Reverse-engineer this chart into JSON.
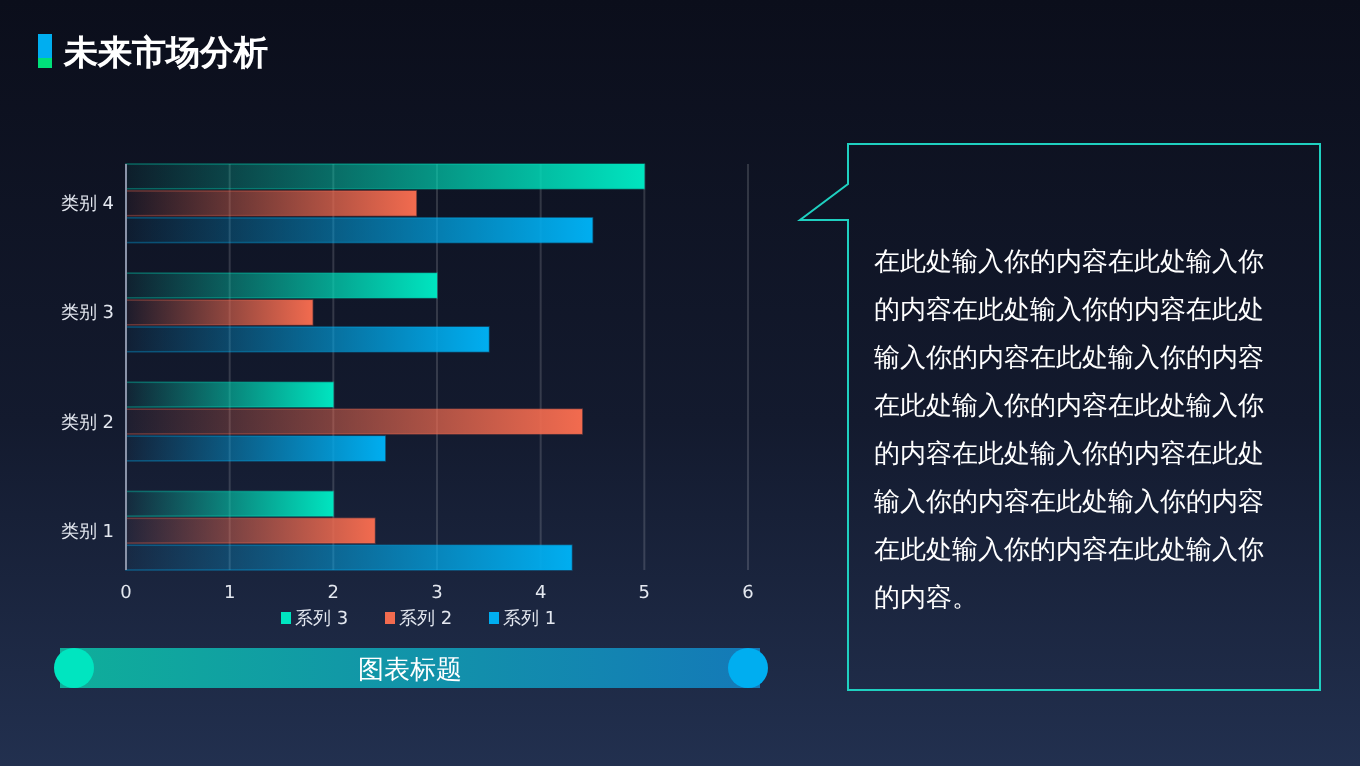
{
  "chart_data": {
    "type": "bar",
    "orientation": "horizontal",
    "title": "未来市场分析",
    "subtitle": "图表标题",
    "categories": [
      "类别 4",
      "类别 3",
      "类别 2",
      "类别 1"
    ],
    "series": [
      {
        "name": "系列 3",
        "color": "#00e5c0",
        "values": [
          5,
          3,
          2,
          2
        ]
      },
      {
        "name": "系列 2",
        "color": "#f26b4f",
        "values": [
          2.8,
          1.8,
          4.4,
          2.4
        ]
      },
      {
        "name": "系列 1",
        "color": "#00aef0",
        "values": [
          4.5,
          3.5,
          2.5,
          4.3
        ]
      }
    ],
    "xlim": [
      0,
      6
    ],
    "xticks": [
      0,
      1,
      2,
      3,
      4,
      5,
      6
    ],
    "grid": "x",
    "legend": "bottom",
    "annotations": [
      "在此处输入你的内容在此处输入你的内容在此处输入你的内容在此处输入你的内容在此处输入你的内容在此处输入你的内容在此处输入你的内容在此处输入你的内容在此处输入你的内容在此处输入你的内容在此处输入你的内容在此处输入你的内容。"
    ]
  }
}
